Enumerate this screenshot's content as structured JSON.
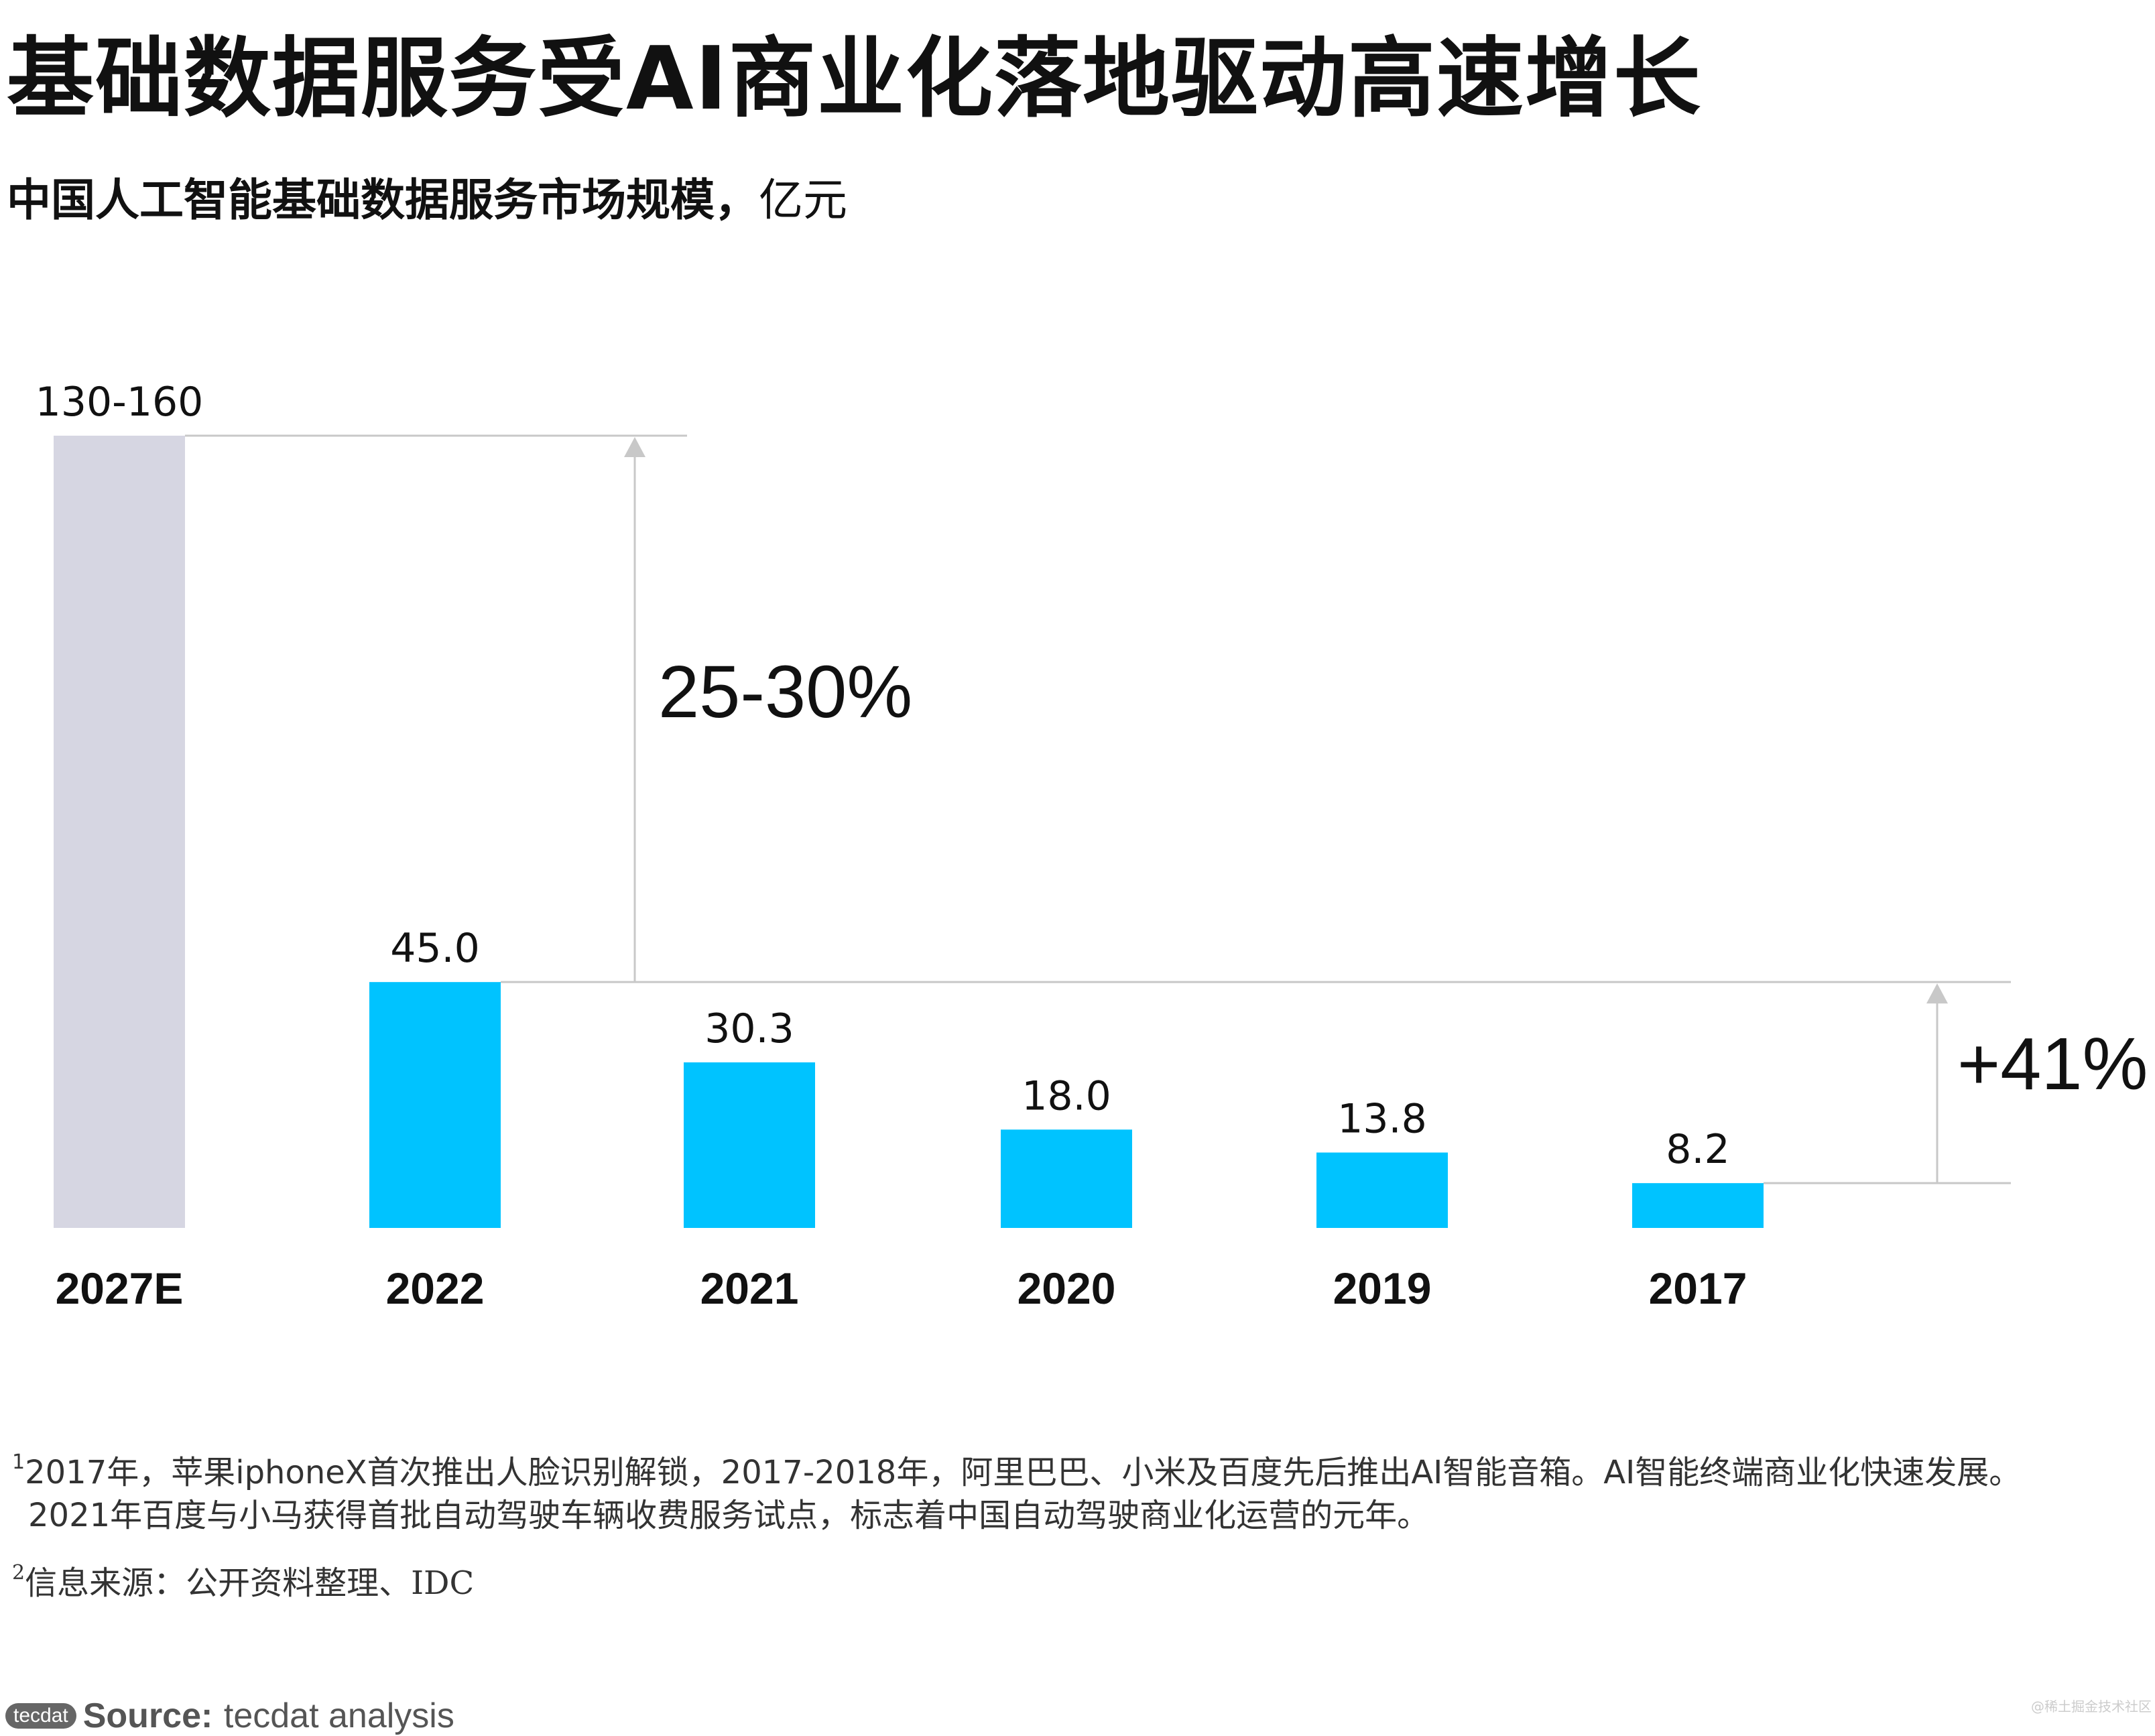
{
  "title": "基础数据服务受AI商业化落地驱动高速增长",
  "subtitle": {
    "bold": "中国人工智能基础数据服务市场规模，",
    "unit": "亿元"
  },
  "chart_data": {
    "type": "bar",
    "title": "中国人工智能基础数据服务市场规模，亿元",
    "categories": [
      "2027E",
      "2022",
      "2021",
      "2020",
      "2019",
      "2017"
    ],
    "values": [
      145,
      45.0,
      30.3,
      18.0,
      13.8,
      8.2
    ],
    "value_labels": [
      "130-160",
      "45.0",
      "30.3",
      "18.0",
      "13.8",
      "8.2"
    ],
    "forecast_range": [
      130,
      160
    ],
    "bar_colors": [
      "#D6D6E2",
      "#00C3FF",
      "#00C3FF",
      "#00C3FF",
      "#00C3FF",
      "#00C3FF"
    ],
    "ylim": [
      0,
      145
    ],
    "annotations": [
      {
        "label": "25-30%",
        "from_category": "2022",
        "to_category": "2027E",
        "meaning": "CAGR 2022-2027E"
      },
      {
        "label": "+41%",
        "from_category": "2017",
        "to_category": "2022",
        "meaning": "CAGR 2017-2022"
      }
    ],
    "xlabel": "",
    "ylabel": "",
    "grid": false
  },
  "notes": {
    "note1_sup": "1",
    "note1_line1": "2017年，苹果iphoneX首次推出人脸识别解锁，2017-2018年，阿里巴巴、小米及百度先后推出AI智能音箱。AI智能终端商业化快速发展。",
    "note1_line2": "2021年百度与小马获得首批自动驾驶车辆收费服务试点，标志着中国自动驾驶商业化运营的元年。",
    "note2_sup": "2",
    "note2": "信息来源：公开资料整理、IDC"
  },
  "footer": {
    "logo": "tecdat",
    "source_label": "Source:",
    "source_text": "tecdat analysis"
  },
  "watermark": "@稀土掘金技术社区",
  "colors": {
    "bar_actual": "#00C3FF",
    "bar_forecast": "#D6D6E2",
    "annotation_line": "#C8C8C8"
  }
}
